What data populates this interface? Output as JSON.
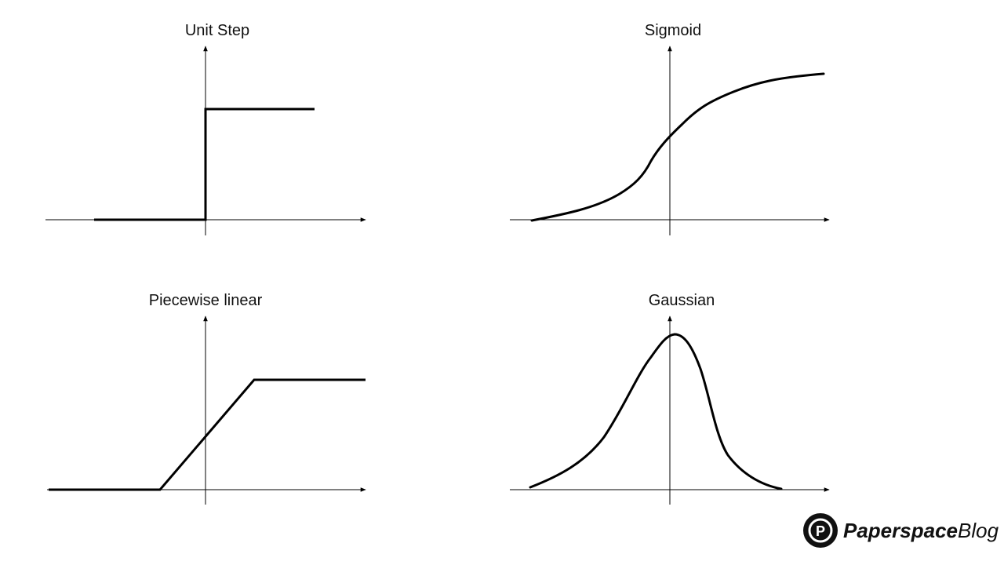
{
  "panels": {
    "unit_step": {
      "title": "Unit Step"
    },
    "sigmoid": {
      "title": "Sigmoid"
    },
    "piecewise_linear": {
      "title": "Piecewise linear"
    },
    "gaussian": {
      "title": "Gaussian"
    }
  },
  "brand": {
    "name_part1": "Paperspace",
    "name_part2": "Blog",
    "logo_letter": "P",
    "color": "#111111"
  }
}
